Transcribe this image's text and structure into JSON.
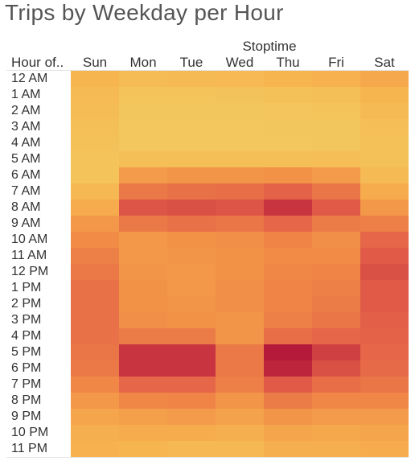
{
  "title": "Trips by Weekday per Hour",
  "column_field": "Stoptime",
  "row_field": "Hour of..",
  "chart_data": {
    "type": "heatmap",
    "title": "Trips by Weekday per Hour",
    "column_field": "Stoptime",
    "row_field": "Hour of..",
    "x": [
      "Sun",
      "Mon",
      "Tue",
      "Wed",
      "Thu",
      "Fri",
      "Sat"
    ],
    "y": [
      "12 AM",
      "1 AM",
      "2 AM",
      "3 AM",
      "4 AM",
      "5 AM",
      "6 AM",
      "7 AM",
      "8 AM",
      "9 AM",
      "10 AM",
      "11 AM",
      "12 PM",
      "1 PM",
      "2 PM",
      "3 PM",
      "4 PM",
      "5 PM",
      "6 PM",
      "7 PM",
      "8 PM",
      "9 PM",
      "10 PM",
      "11 PM"
    ],
    "values": [
      [
        0.24,
        0.18,
        0.2,
        0.21,
        0.24,
        0.26,
        0.32
      ],
      [
        0.2,
        0.12,
        0.12,
        0.13,
        0.14,
        0.16,
        0.24
      ],
      [
        0.18,
        0.1,
        0.1,
        0.1,
        0.11,
        0.12,
        0.2
      ],
      [
        0.16,
        0.09,
        0.09,
        0.09,
        0.1,
        0.1,
        0.17
      ],
      [
        0.14,
        0.09,
        0.09,
        0.09,
        0.09,
        0.1,
        0.14
      ],
      [
        0.12,
        0.16,
        0.16,
        0.16,
        0.16,
        0.17,
        0.14
      ],
      [
        0.12,
        0.4,
        0.44,
        0.44,
        0.46,
        0.4,
        0.2
      ],
      [
        0.22,
        0.6,
        0.64,
        0.66,
        0.72,
        0.62,
        0.3
      ],
      [
        0.3,
        0.78,
        0.8,
        0.78,
        0.9,
        0.76,
        0.42
      ],
      [
        0.42,
        0.6,
        0.64,
        0.62,
        0.7,
        0.58,
        0.56
      ],
      [
        0.5,
        0.42,
        0.46,
        0.48,
        0.54,
        0.48,
        0.7
      ],
      [
        0.56,
        0.42,
        0.44,
        0.46,
        0.5,
        0.5,
        0.76
      ],
      [
        0.6,
        0.44,
        0.42,
        0.46,
        0.52,
        0.54,
        0.8
      ],
      [
        0.64,
        0.46,
        0.42,
        0.48,
        0.54,
        0.56,
        0.76
      ],
      [
        0.64,
        0.46,
        0.44,
        0.48,
        0.54,
        0.58,
        0.76
      ],
      [
        0.64,
        0.48,
        0.46,
        0.44,
        0.56,
        0.62,
        0.74
      ],
      [
        0.64,
        0.58,
        0.58,
        0.44,
        0.66,
        0.7,
        0.72
      ],
      [
        0.62,
        0.9,
        0.9,
        0.6,
        1.0,
        0.86,
        0.7
      ],
      [
        0.6,
        0.9,
        0.9,
        0.6,
        0.96,
        0.8,
        0.68
      ],
      [
        0.52,
        0.7,
        0.7,
        0.56,
        0.76,
        0.66,
        0.62
      ],
      [
        0.42,
        0.52,
        0.54,
        0.44,
        0.58,
        0.52,
        0.52
      ],
      [
        0.34,
        0.38,
        0.4,
        0.36,
        0.44,
        0.4,
        0.4
      ],
      [
        0.28,
        0.3,
        0.3,
        0.28,
        0.34,
        0.32,
        0.34
      ],
      [
        0.26,
        0.24,
        0.22,
        0.22,
        0.28,
        0.28,
        0.3
      ]
    ],
    "color_scale": [
      "#f1d266",
      "#f7b44f",
      "#f18b46",
      "#e25d48",
      "#b61a3a"
    ],
    "value_unit": "relative trip count",
    "legend": "none"
  }
}
